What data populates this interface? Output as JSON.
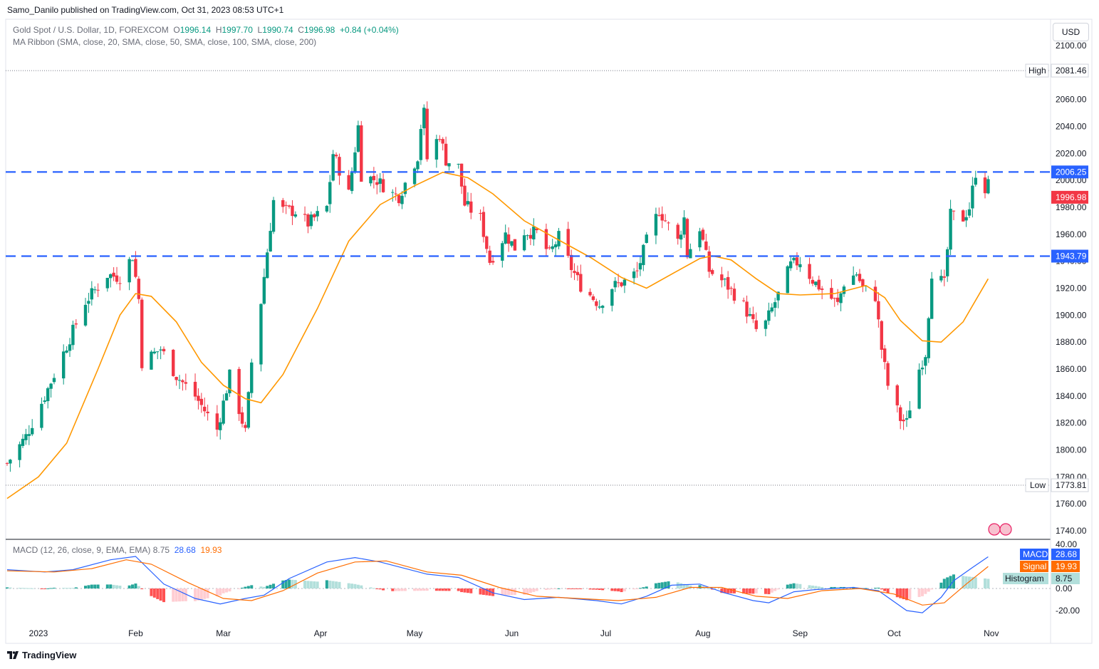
{
  "header": {
    "published": "Samo_Danilo published on TradingView.com, Oct 31, 2023 08:53 UTC+1"
  },
  "legend": {
    "symbol": "Gold Spot / U.S. Dollar, 1D, FOREXCOM",
    "o_label": "O",
    "o": "1996.14",
    "h_label": "H",
    "h": "1997.70",
    "l_label": "L",
    "l": "1990.74",
    "c_label": "C",
    "c": "1996.98",
    "change": "+0.84 (+0.04%)",
    "ma": "MA Ribbon (SMA, close, 20, SMA, close, 50, SMA, close, 100, SMA, close, 200)"
  },
  "currency_button": "USD",
  "price_axis": {
    "ticks": [
      "2100.00",
      "2080.00",
      "2060.00",
      "2040.00",
      "2020.00",
      "2000.00",
      "1980.00",
      "1960.00",
      "1940.00",
      "1920.00",
      "1900.00",
      "1880.00",
      "1860.00",
      "1840.00",
      "1820.00",
      "1800.00",
      "1780.00",
      "1760.00",
      "1740.00"
    ],
    "high_label": "High",
    "high_value": "2081.46",
    "low_label": "Low",
    "low_value": "1773.81",
    "resistance_label": "2006.25",
    "support_label": "1943.79",
    "last_price_label": "1996.98"
  },
  "time_axis": [
    "2023",
    "Feb",
    "Mar",
    "Apr",
    "May",
    "Jun",
    "Jul",
    "Aug",
    "Sep",
    "Oct",
    "Nov"
  ],
  "macd": {
    "legend": "MACD (12, 26, close, 9, EMA, EMA) 8.75",
    "legend_macd": "28.68",
    "legend_signal": "19.93",
    "macd_label": "MACD",
    "macd_value": "28.68",
    "signal_label": "Signal",
    "signal_value": "19.93",
    "hist_label": "Histogram",
    "hist_value": "8.75",
    "ticks": [
      "40.00",
      "20.00",
      "0.00",
      "-20.00"
    ]
  },
  "colors": {
    "up": "#089981",
    "down": "#f23645",
    "ma": "#ff9800",
    "level": "#2962ff",
    "macd": "#2962ff",
    "signal": "#ff6d00"
  },
  "footer": "TradingView",
  "chart_data": {
    "type": "candlestick",
    "title": "Gold Spot / U.S. Dollar, 1D, FOREXCOM",
    "ylim": [
      1740,
      2100
    ],
    "x_range": [
      "2022-12-22",
      "2023-11-04"
    ],
    "horizontal_levels": [
      2006.25,
      1943.79
    ],
    "high": 2081.46,
    "low": 1773.81,
    "last_close": 1996.98,
    "anchors": [
      {
        "date": "2022-12-22",
        "price": 1790
      },
      {
        "date": "2022-12-28",
        "price": 1810
      },
      {
        "date": "2023-01-03",
        "price": 1840
      },
      {
        "date": "2023-01-09",
        "price": 1872
      },
      {
        "date": "2023-01-16",
        "price": 1910
      },
      {
        "date": "2023-01-23",
        "price": 1930
      },
      {
        "date": "2023-01-27",
        "price": 1928
      },
      {
        "date": "2023-01-31",
        "price": 1944
      },
      {
        "date": "2023-02-02",
        "price": 1912
      },
      {
        "date": "2023-02-03",
        "price": 1865
      },
      {
        "date": "2023-02-09",
        "price": 1875
      },
      {
        "date": "2023-02-14",
        "price": 1855
      },
      {
        "date": "2023-02-20",
        "price": 1840
      },
      {
        "date": "2023-02-27",
        "price": 1815
      },
      {
        "date": "2023-03-01",
        "price": 1835
      },
      {
        "date": "2023-03-03",
        "price": 1855
      },
      {
        "date": "2023-03-08",
        "price": 1813
      },
      {
        "date": "2023-03-10",
        "price": 1865
      },
      {
        "date": "2023-03-13",
        "price": 1910
      },
      {
        "date": "2023-03-17",
        "price": 1985
      },
      {
        "date": "2023-03-20",
        "price": 1978
      },
      {
        "date": "2023-03-24",
        "price": 1977
      },
      {
        "date": "2023-03-28",
        "price": 1968
      },
      {
        "date": "2023-04-03",
        "price": 1980
      },
      {
        "date": "2023-04-05",
        "price": 2020
      },
      {
        "date": "2023-04-10",
        "price": 1990
      },
      {
        "date": "2023-04-13",
        "price": 2040
      },
      {
        "date": "2023-04-14",
        "price": 2004
      },
      {
        "date": "2023-04-19",
        "price": 2000
      },
      {
        "date": "2023-04-24",
        "price": 1990
      },
      {
        "date": "2023-04-26",
        "price": 1988
      },
      {
        "date": "2023-05-02",
        "price": 2018
      },
      {
        "date": "2023-05-03",
        "price": 2040
      },
      {
        "date": "2023-05-04",
        "price": 2050
      },
      {
        "date": "2023-05-05",
        "price": 2016
      },
      {
        "date": "2023-05-09",
        "price": 2034
      },
      {
        "date": "2023-05-11",
        "price": 2015
      },
      {
        "date": "2023-05-15",
        "price": 2010
      },
      {
        "date": "2023-05-17",
        "price": 1982
      },
      {
        "date": "2023-05-22",
        "price": 1972
      },
      {
        "date": "2023-05-25",
        "price": 1940
      },
      {
        "date": "2023-05-30",
        "price": 1960
      },
      {
        "date": "2023-06-02",
        "price": 1950
      },
      {
        "date": "2023-06-05",
        "price": 1962
      },
      {
        "date": "2023-06-09",
        "price": 1961
      },
      {
        "date": "2023-06-13",
        "price": 1945
      },
      {
        "date": "2023-06-16",
        "price": 1958
      },
      {
        "date": "2023-06-20",
        "price": 1935
      },
      {
        "date": "2023-06-23",
        "price": 1922
      },
      {
        "date": "2023-06-29",
        "price": 1908
      },
      {
        "date": "2023-07-03",
        "price": 1921
      },
      {
        "date": "2023-07-07",
        "price": 1925
      },
      {
        "date": "2023-07-11",
        "price": 1932
      },
      {
        "date": "2023-07-14",
        "price": 1955
      },
      {
        "date": "2023-07-18",
        "price": 1978
      },
      {
        "date": "2023-07-20",
        "price": 1970
      },
      {
        "date": "2023-07-24",
        "price": 1955
      },
      {
        "date": "2023-07-26",
        "price": 1972
      },
      {
        "date": "2023-07-27",
        "price": 1945
      },
      {
        "date": "2023-07-31",
        "price": 1965
      },
      {
        "date": "2023-08-03",
        "price": 1933
      },
      {
        "date": "2023-08-08",
        "price": 1924
      },
      {
        "date": "2023-08-14",
        "price": 1907
      },
      {
        "date": "2023-08-18",
        "price": 1889
      },
      {
        "date": "2023-08-21",
        "price": 1894
      },
      {
        "date": "2023-08-25",
        "price": 1915
      },
      {
        "date": "2023-08-29",
        "price": 1937
      },
      {
        "date": "2023-09-01",
        "price": 1940
      },
      {
        "date": "2023-09-05",
        "price": 1926
      },
      {
        "date": "2023-09-08",
        "price": 1919
      },
      {
        "date": "2023-09-13",
        "price": 1908
      },
      {
        "date": "2023-09-15",
        "price": 1924
      },
      {
        "date": "2023-09-19",
        "price": 1931
      },
      {
        "date": "2023-09-21",
        "price": 1920
      },
      {
        "date": "2023-09-25",
        "price": 1914
      },
      {
        "date": "2023-09-27",
        "price": 1875
      },
      {
        "date": "2023-09-29",
        "price": 1848
      },
      {
        "date": "2023-10-03",
        "price": 1823
      },
      {
        "date": "2023-10-05",
        "price": 1820
      },
      {
        "date": "2023-10-06",
        "price": 1832
      },
      {
        "date": "2023-10-09",
        "price": 1860
      },
      {
        "date": "2023-10-11",
        "price": 1872
      },
      {
        "date": "2023-10-13",
        "price": 1932
      },
      {
        "date": "2023-10-17",
        "price": 1923
      },
      {
        "date": "2023-10-19",
        "price": 1974
      },
      {
        "date": "2023-10-23",
        "price": 1972
      },
      {
        "date": "2023-10-25",
        "price": 1980
      },
      {
        "date": "2023-10-27",
        "price": 2006
      },
      {
        "date": "2023-10-30",
        "price": 1994
      },
      {
        "date": "2023-10-31",
        "price": 1997
      }
    ],
    "ma_sma20": [
      {
        "date": "2022-12-22",
        "price": 1764
      },
      {
        "date": "2023-01-01",
        "price": 1780
      },
      {
        "date": "2023-01-10",
        "price": 1805
      },
      {
        "date": "2023-01-20",
        "price": 1860
      },
      {
        "date": "2023-01-27",
        "price": 1900
      },
      {
        "date": "2023-02-01",
        "price": 1916
      },
      {
        "date": "2023-02-06",
        "price": 1914
      },
      {
        "date": "2023-02-14",
        "price": 1895
      },
      {
        "date": "2023-02-22",
        "price": 1865
      },
      {
        "date": "2023-03-01",
        "price": 1848
      },
      {
        "date": "2023-03-08",
        "price": 1838
      },
      {
        "date": "2023-03-13",
        "price": 1835
      },
      {
        "date": "2023-03-20",
        "price": 1856
      },
      {
        "date": "2023-03-31",
        "price": 1905
      },
      {
        "date": "2023-04-10",
        "price": 1955
      },
      {
        "date": "2023-04-20",
        "price": 1982
      },
      {
        "date": "2023-05-01",
        "price": 1996
      },
      {
        "date": "2023-05-10",
        "price": 2006
      },
      {
        "date": "2023-05-18",
        "price": 2002
      },
      {
        "date": "2023-05-26",
        "price": 1990
      },
      {
        "date": "2023-06-05",
        "price": 1970
      },
      {
        "date": "2023-06-15",
        "price": 1957
      },
      {
        "date": "2023-06-26",
        "price": 1943
      },
      {
        "date": "2023-07-06",
        "price": 1928
      },
      {
        "date": "2023-07-14",
        "price": 1920
      },
      {
        "date": "2023-07-24",
        "price": 1933
      },
      {
        "date": "2023-07-31",
        "price": 1942
      },
      {
        "date": "2023-08-04",
        "price": 1944
      },
      {
        "date": "2023-08-10",
        "price": 1941
      },
      {
        "date": "2023-08-18",
        "price": 1927
      },
      {
        "date": "2023-08-25",
        "price": 1916
      },
      {
        "date": "2023-09-01",
        "price": 1915
      },
      {
        "date": "2023-09-12",
        "price": 1916
      },
      {
        "date": "2023-09-22",
        "price": 1922
      },
      {
        "date": "2023-09-28",
        "price": 1913
      },
      {
        "date": "2023-10-03",
        "price": 1896
      },
      {
        "date": "2023-10-10",
        "price": 1881
      },
      {
        "date": "2023-10-16",
        "price": 1880
      },
      {
        "date": "2023-10-23",
        "price": 1895
      },
      {
        "date": "2023-10-31",
        "price": 1927
      }
    ],
    "macd_line": [
      {
        "date": "2022-12-22",
        "v": 17
      },
      {
        "date": "2023-01-03",
        "v": 15
      },
      {
        "date": "2023-01-12",
        "v": 17
      },
      {
        "date": "2023-01-24",
        "v": 26
      },
      {
        "date": "2023-02-01",
        "v": 29
      },
      {
        "date": "2023-02-10",
        "v": 4
      },
      {
        "date": "2023-02-20",
        "v": -9
      },
      {
        "date": "2023-02-28",
        "v": -14
      },
      {
        "date": "2023-03-08",
        "v": -9
      },
      {
        "date": "2023-03-14",
        "v": -6
      },
      {
        "date": "2023-03-22",
        "v": 9
      },
      {
        "date": "2023-04-03",
        "v": 24
      },
      {
        "date": "2023-04-12",
        "v": 28
      },
      {
        "date": "2023-04-20",
        "v": 24
      },
      {
        "date": "2023-05-05",
        "v": 13
      },
      {
        "date": "2023-05-15",
        "v": 10
      },
      {
        "date": "2023-05-26",
        "v": -4
      },
      {
        "date": "2023-06-05",
        "v": -10
      },
      {
        "date": "2023-06-16",
        "v": -8
      },
      {
        "date": "2023-06-28",
        "v": -11
      },
      {
        "date": "2023-07-06",
        "v": -14
      },
      {
        "date": "2023-07-14",
        "v": -7
      },
      {
        "date": "2023-07-22",
        "v": 3
      },
      {
        "date": "2023-07-31",
        "v": 4
      },
      {
        "date": "2023-08-08",
        "v": -4
      },
      {
        "date": "2023-08-17",
        "v": -11
      },
      {
        "date": "2023-08-22",
        "v": -13
      },
      {
        "date": "2023-08-30",
        "v": -3
      },
      {
        "date": "2023-09-06",
        "v": -1
      },
      {
        "date": "2023-09-18",
        "v": 1
      },
      {
        "date": "2023-09-26",
        "v": -2
      },
      {
        "date": "2023-10-05",
        "v": -20
      },
      {
        "date": "2023-10-10",
        "v": -22
      },
      {
        "date": "2023-10-16",
        "v": -8
      },
      {
        "date": "2023-10-20",
        "v": 7
      },
      {
        "date": "2023-10-26",
        "v": 19
      },
      {
        "date": "2023-10-31",
        "v": 28.68
      }
    ],
    "signal_line": [
      {
        "date": "2022-12-22",
        "v": 16
      },
      {
        "date": "2023-01-06",
        "v": 15
      },
      {
        "date": "2023-01-18",
        "v": 18
      },
      {
        "date": "2023-01-29",
        "v": 26
      },
      {
        "date": "2023-02-06",
        "v": 22
      },
      {
        "date": "2023-02-18",
        "v": 5
      },
      {
        "date": "2023-03-01",
        "v": -9
      },
      {
        "date": "2023-03-10",
        "v": -11
      },
      {
        "date": "2023-03-20",
        "v": -2
      },
      {
        "date": "2023-03-31",
        "v": 14
      },
      {
        "date": "2023-04-12",
        "v": 24
      },
      {
        "date": "2023-04-22",
        "v": 25
      },
      {
        "date": "2023-05-05",
        "v": 15
      },
      {
        "date": "2023-05-16",
        "v": 12
      },
      {
        "date": "2023-05-28",
        "v": 1
      },
      {
        "date": "2023-06-09",
        "v": -7
      },
      {
        "date": "2023-06-22",
        "v": -9
      },
      {
        "date": "2023-07-05",
        "v": -11
      },
      {
        "date": "2023-07-17",
        "v": -8
      },
      {
        "date": "2023-07-28",
        "v": 1
      },
      {
        "date": "2023-08-07",
        "v": 1
      },
      {
        "date": "2023-08-18",
        "v": -7
      },
      {
        "date": "2023-08-28",
        "v": -9
      },
      {
        "date": "2023-09-08",
        "v": -2
      },
      {
        "date": "2023-09-20",
        "v": 0
      },
      {
        "date": "2023-10-01",
        "v": -5
      },
      {
        "date": "2023-10-10",
        "v": -15
      },
      {
        "date": "2023-10-17",
        "v": -13
      },
      {
        "date": "2023-10-24",
        "v": 4
      },
      {
        "date": "2023-10-31",
        "v": 19.93
      }
    ],
    "macd_ylim": [
      -25,
      40
    ]
  }
}
